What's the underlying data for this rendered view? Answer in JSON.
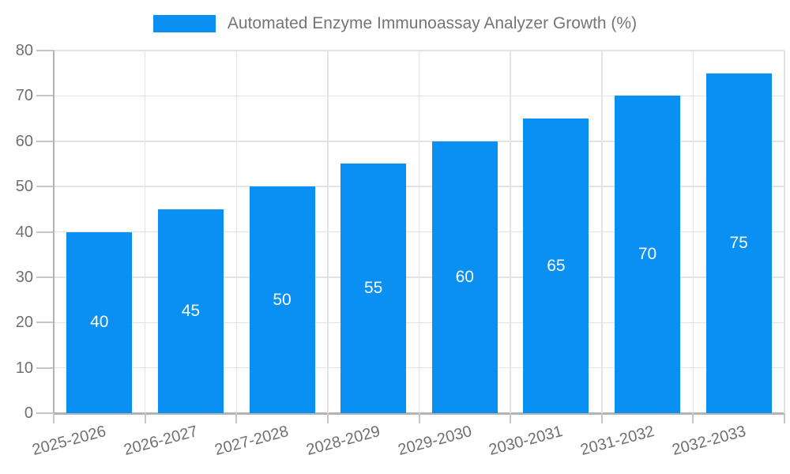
{
  "chart_data": {
    "type": "bar",
    "title": "Automated Enzyme Immunoassay Analyzer Growth (%)",
    "categories": [
      "2025-2026",
      "2026-2027",
      "2027-2028",
      "2028-2029",
      "2029-2030",
      "2030-2031",
      "2031-2032",
      "2032-2033"
    ],
    "values": [
      40,
      45,
      50,
      55,
      60,
      65,
      70,
      75
    ],
    "xlabel": "",
    "ylabel": "",
    "ylim": [
      0,
      80
    ],
    "ytick_step": 10,
    "ytick_labels": [
      "0",
      "10",
      "20",
      "30",
      "40",
      "50",
      "60",
      "70",
      "80"
    ],
    "grid": true,
    "legend_position": "top-center",
    "value_labels": "inside-center",
    "x_tick_label_rotation_deg": -15
  },
  "colors": {
    "bar": "#0a8ff2",
    "grid": "#e3e3e3",
    "axis": "#b3b3b3",
    "tick": "#c6c6c6",
    "axis_label_text": "#707070",
    "legend_text": "#757575",
    "value_label_text": "#ffffff",
    "background": "#ffffff"
  }
}
